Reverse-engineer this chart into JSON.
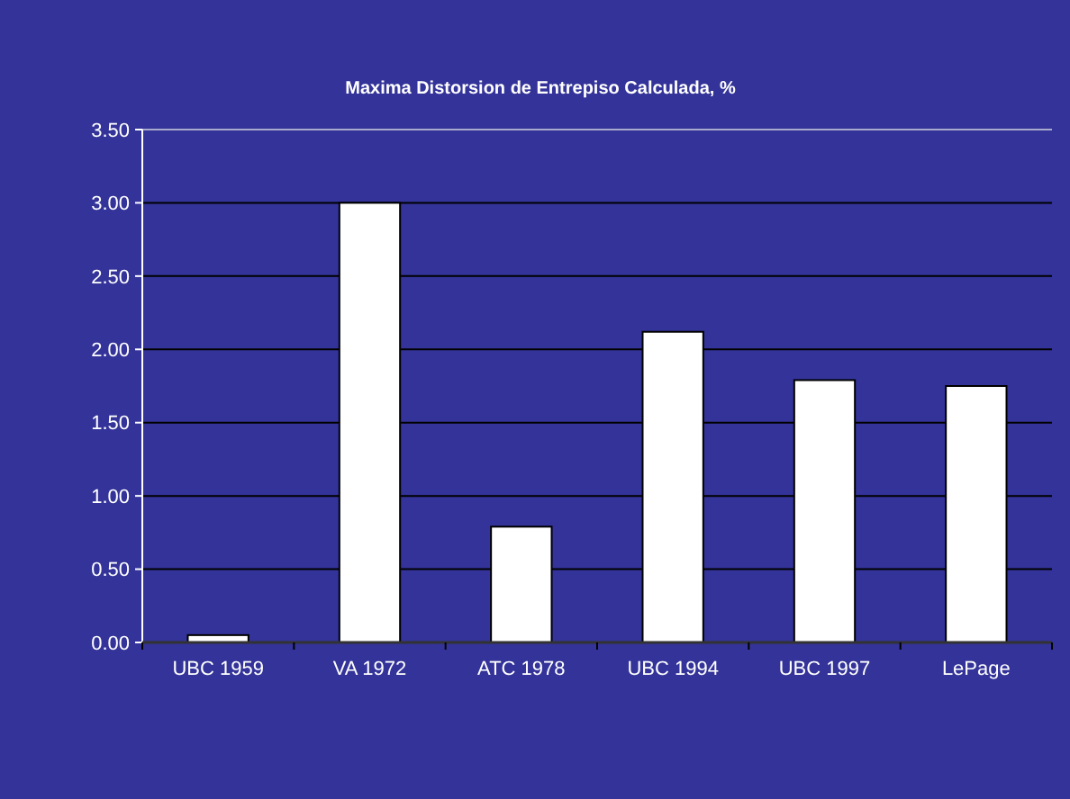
{
  "chart_data": {
    "type": "bar",
    "title": "Maxima Distorsion de Entrepiso Calculada, %",
    "categories": [
      "UBC 1959",
      "VA 1972",
      "ATC 1978",
      "UBC 1994",
      "UBC 1997",
      "LePage"
    ],
    "values": [
      0.05,
      3.0,
      0.79,
      2.12,
      1.79,
      1.75
    ],
    "color": "#ffffff",
    "ylim": [
      0,
      3.5
    ],
    "yticks": [
      {
        "value": 0,
        "label": "0.00"
      },
      {
        "value": 0.5,
        "label": "0.50"
      },
      {
        "value": 1,
        "label": "1.00"
      },
      {
        "value": 1.5,
        "label": "1.50"
      },
      {
        "value": 2,
        "label": "2.00"
      },
      {
        "value": 2.5,
        "label": "2.50"
      },
      {
        "value": 3,
        "label": "3.00"
      },
      {
        "value": 3.5,
        "label": "3.50"
      }
    ],
    "grid": "y"
  }
}
